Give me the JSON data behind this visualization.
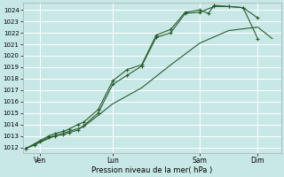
{
  "background_color": "#c8e8e8",
  "grid_color": "#ffffff",
  "line_color": "#2a5c2a",
  "xlabel": "Pression niveau de la mer( hPa )",
  "ylim": [
    1011.5,
    1024.6
  ],
  "yticks": [
    1012,
    1013,
    1014,
    1015,
    1016,
    1017,
    1018,
    1019,
    1020,
    1021,
    1022,
    1023,
    1024
  ],
  "xtick_labels": [
    "Ven",
    "Lun",
    "Sam",
    "Dim"
  ],
  "xtick_positions": [
    0.5,
    3.0,
    6.0,
    8.0
  ],
  "xlim": [
    -0.1,
    8.8
  ],
  "line1_x": [
    0,
    0.3,
    0.5,
    0.8,
    1.0,
    1.3,
    1.5,
    1.8,
    2.0,
    2.5,
    3.0,
    3.5,
    4.0,
    4.5,
    5.0,
    5.5,
    6.0,
    6.5,
    7.0,
    7.5,
    8.0
  ],
  "line1_y": [
    1011.9,
    1012.2,
    1012.5,
    1012.9,
    1013.0,
    1013.1,
    1013.3,
    1013.5,
    1013.9,
    1015.0,
    1017.5,
    1018.3,
    1019.1,
    1021.6,
    1022.0,
    1023.7,
    1023.8,
    1024.3,
    1024.3,
    1024.2,
    1021.5
  ],
  "line2_x": [
    0,
    0.3,
    0.5,
    0.8,
    1.0,
    1.3,
    1.5,
    1.8,
    2.0,
    2.5,
    3.0,
    3.5,
    4.0,
    4.5,
    5.0,
    5.5,
    6.0,
    6.3,
    6.5,
    7.0,
    7.5,
    8.0
  ],
  "line2_y": [
    1011.9,
    1012.3,
    1012.6,
    1013.0,
    1013.2,
    1013.4,
    1013.6,
    1014.0,
    1014.2,
    1015.3,
    1017.8,
    1018.8,
    1019.2,
    1021.8,
    1022.3,
    1023.8,
    1024.0,
    1023.7,
    1024.4,
    1024.3,
    1024.2,
    1023.3
  ],
  "line3_x": [
    0,
    1.0,
    2.0,
    3.0,
    4.0,
    5.0,
    6.0,
    7.0,
    8.0,
    8.5
  ],
  "line3_y": [
    1011.9,
    1013.0,
    1013.8,
    1015.8,
    1017.2,
    1019.2,
    1021.1,
    1022.2,
    1022.5,
    1021.5
  ]
}
